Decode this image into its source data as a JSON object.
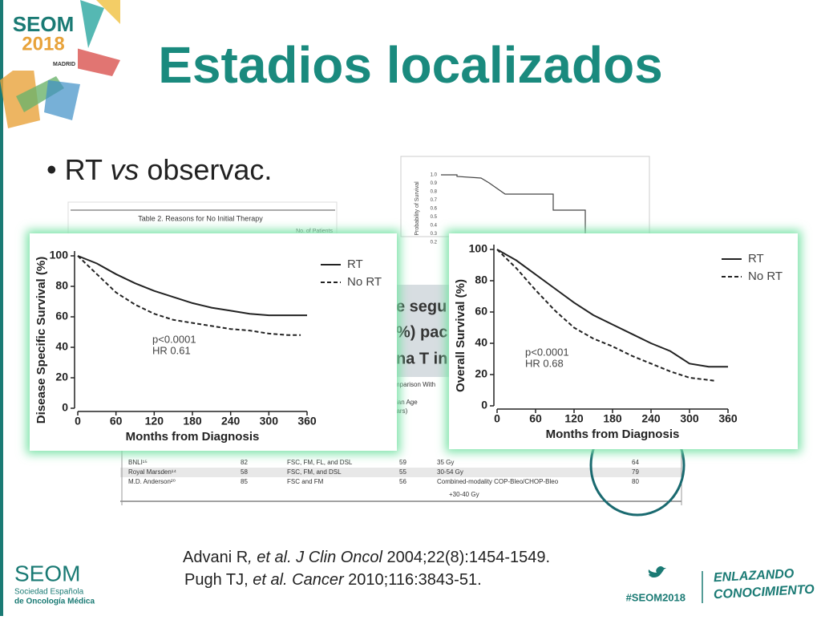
{
  "logo": {
    "name": "SEOM",
    "year": "2018",
    "city": "MADRID"
  },
  "header": {
    "title": "Estadios localizados"
  },
  "bullet": [
    "RT ",
    "vs",
    " observac."
  ],
  "background": {
    "table_title": "Table 2. Reasons for No Initial Therapy",
    "table_header": "No. of Patients",
    "plot_ylabel": "Probability of Survival",
    "plot_yticks": [
      "1.0",
      "0.9",
      "0.8",
      "0.7",
      "0.6",
      "0.5",
      "0.4",
      "0.3",
      "0.2"
    ],
    "box_lines": [
      "e segu",
      "%) pac",
      "na T in"
    ],
    "table2_head": [
      "mparison With",
      "ian Age",
      "ears)"
    ],
    "table2_rows": [
      [
        "BNLI¹⁵",
        "82",
        "FSC, FM, FL, and DSL",
        "59",
        "35 Gy",
        "64"
      ],
      [
        "Royal Marsden¹⁴",
        "58",
        "FSC, FM, and DSL",
        "55",
        "30-54 Gy",
        "79"
      ],
      [
        "M.D. Anderson²⁰",
        "85",
        "FSC and FM",
        "56",
        "Combined-modality COP-Bleo/CHOP-Bleo",
        "80"
      ]
    ],
    "table2_extra": "+30-40 Gy"
  },
  "chart_data": [
    {
      "type": "line",
      "ylabel": "Disease Specific Survival (%)",
      "xlabel": "Months from Diagnosis",
      "xlim": [
        0,
        360
      ],
      "xticks": [
        0,
        60,
        120,
        180,
        240,
        300,
        360
      ],
      "ylim": [
        0,
        100
      ],
      "yticks": [
        0,
        20,
        40,
        60,
        80,
        100
      ],
      "annotations": [
        "p<0.0001",
        "HR 0.61"
      ],
      "series": [
        {
          "name": "RT",
          "color": "#222222",
          "style": "solid",
          "x": [
            0,
            30,
            60,
            90,
            120,
            150,
            180,
            210,
            240,
            270,
            300,
            360
          ],
          "values": [
            100,
            95,
            88,
            82,
            77,
            73,
            69,
            66,
            64,
            62,
            61,
            61
          ]
        },
        {
          "name": "No RT",
          "color": "#222222",
          "style": "dashed",
          "x": [
            0,
            30,
            60,
            90,
            120,
            150,
            180,
            210,
            240,
            270,
            300,
            330,
            350
          ],
          "values": [
            100,
            88,
            76,
            68,
            62,
            58,
            56,
            54,
            52,
            51,
            49,
            48,
            48
          ]
        }
      ]
    },
    {
      "type": "line",
      "ylabel": "Overall Survival (%)",
      "xlabel": "Months from Diagnosis",
      "xlim": [
        0,
        360
      ],
      "xticks": [
        0,
        60,
        120,
        180,
        240,
        300,
        360
      ],
      "ylim": [
        0,
        100
      ],
      "yticks": [
        0,
        20,
        40,
        60,
        80,
        100
      ],
      "annotations": [
        "p<0.0001",
        "HR 0.68"
      ],
      "series": [
        {
          "name": "RT",
          "color": "#222222",
          "style": "solid",
          "x": [
            0,
            30,
            60,
            90,
            120,
            150,
            180,
            210,
            240,
            270,
            300,
            330,
            360
          ],
          "values": [
            100,
            93,
            84,
            75,
            66,
            58,
            52,
            46,
            40,
            35,
            27,
            25,
            25
          ]
        },
        {
          "name": "No RT",
          "color": "#222222",
          "style": "dashed",
          "x": [
            0,
            30,
            60,
            90,
            120,
            150,
            180,
            210,
            240,
            270,
            300,
            340
          ],
          "values": [
            100,
            88,
            74,
            61,
            50,
            43,
            38,
            32,
            27,
            22,
            18,
            16
          ]
        }
      ]
    }
  ],
  "references": [
    [
      "Advani R",
      ", et al. J Clin Oncol",
      " 2004;22(8):1454-1549."
    ],
    [
      "Pugh TJ, ",
      "et al. Cancer",
      " 2010;116:3843-51."
    ]
  ],
  "footer": {
    "org": "SEOM",
    "org_full": [
      "Sociedad Española",
      "de Oncología Médica"
    ],
    "hashtag": "#SEOM2018",
    "slogan": [
      "ENLAZANDO",
      "CONOCIMIENTO"
    ]
  }
}
